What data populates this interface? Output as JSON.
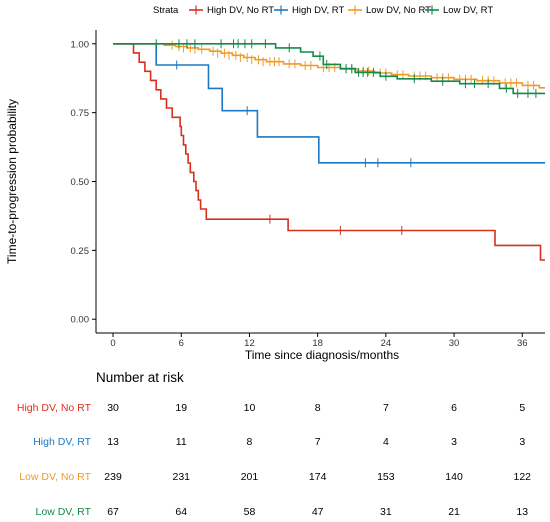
{
  "chart_data": {
    "type": "line",
    "subtype": "kaplan-meier-step",
    "legend": {
      "title": "Strata",
      "placement": "top",
      "entries": [
        "High DV, No RT",
        "High DV, RT",
        "Low DV, No RT",
        "Low DV, RT"
      ]
    },
    "xlabel": "Time since diagnosis/months",
    "ylabel": "Time-to-progression probability",
    "xlim": [
      -1.5,
      38
    ],
    "ylim": [
      -0.05,
      1.05
    ],
    "x_ticks": [
      0,
      6,
      12,
      18,
      24,
      30,
      36
    ],
    "x_tick_labels": [
      "0",
      "6",
      "12",
      "18",
      "24",
      "30",
      "36"
    ],
    "y_ticks": [
      0,
      0.25,
      0.5,
      0.75,
      1
    ],
    "y_tick_labels": [
      "0.00",
      "0.25",
      "0.50",
      "0.75",
      "1.00"
    ],
    "grid": false,
    "series": [
      {
        "name": "High DV, No RT",
        "color": "#d7301f",
        "steps": [
          [
            0,
            1.0
          ],
          [
            1.8,
            0.967
          ],
          [
            2.3,
            0.933
          ],
          [
            2.8,
            0.9
          ],
          [
            3.3,
            0.867
          ],
          [
            3.8,
            0.833
          ],
          [
            4.2,
            0.8
          ],
          [
            4.7,
            0.767
          ],
          [
            5.2,
            0.733
          ],
          [
            5.9,
            0.7
          ],
          [
            6.0,
            0.667
          ],
          [
            6.2,
            0.633
          ],
          [
            6.4,
            0.6
          ],
          [
            6.6,
            0.567
          ],
          [
            6.8,
            0.533
          ],
          [
            7.1,
            0.5
          ],
          [
            7.3,
            0.467
          ],
          [
            7.5,
            0.433
          ],
          [
            7.7,
            0.4
          ],
          [
            8.2,
            0.363
          ],
          [
            15.4,
            0.322
          ],
          [
            33.6,
            0.268
          ],
          [
            37.6,
            0.215
          ],
          [
            38,
            0.215
          ]
        ],
        "censor": [
          [
            13.8,
            0.363
          ],
          [
            20.0,
            0.322
          ],
          [
            25.4,
            0.322
          ]
        ]
      },
      {
        "name": "High DV, RT",
        "color": "#1f78c1",
        "steps": [
          [
            0,
            1.0
          ],
          [
            3.8,
            0.923
          ],
          [
            8.4,
            0.838
          ],
          [
            9.6,
            0.757
          ],
          [
            12.7,
            0.662
          ],
          [
            18.1,
            0.568
          ],
          [
            38,
            0.568
          ]
        ],
        "censor": [
          [
            5.6,
            0.923
          ],
          [
            11.8,
            0.757
          ],
          [
            22.2,
            0.568
          ],
          [
            23.3,
            0.568
          ],
          [
            26.2,
            0.568
          ]
        ]
      },
      {
        "name": "Low DV, No RT",
        "color": "#f39a26",
        "steps": [
          [
            0,
            1.0
          ],
          [
            4.5,
            0.995
          ],
          [
            5.5,
            0.99
          ],
          [
            6.5,
            0.985
          ],
          [
            7.5,
            0.98
          ],
          [
            8.5,
            0.973
          ],
          [
            9.5,
            0.966
          ],
          [
            10.5,
            0.958
          ],
          [
            11.5,
            0.95
          ],
          [
            12.5,
            0.942
          ],
          [
            13.5,
            0.935
          ],
          [
            15.0,
            0.927
          ],
          [
            16.5,
            0.921
          ],
          [
            18.0,
            0.914
          ],
          [
            20.0,
            0.908
          ],
          [
            21.5,
            0.901
          ],
          [
            23.0,
            0.894
          ],
          [
            24.5,
            0.888
          ],
          [
            26.0,
            0.883
          ],
          [
            28.0,
            0.877
          ],
          [
            30.0,
            0.871
          ],
          [
            32.0,
            0.866
          ],
          [
            34.0,
            0.858
          ],
          [
            36.0,
            0.849
          ],
          [
            37.5,
            0.84
          ],
          [
            38,
            0.84
          ]
        ],
        "censor": [
          [
            5.2,
            0.995
          ],
          [
            5.8,
            0.99
          ],
          [
            6.2,
            0.985
          ],
          [
            6.8,
            0.985
          ],
          [
            7.2,
            0.98
          ],
          [
            7.8,
            0.98
          ],
          [
            8.8,
            0.973
          ],
          [
            9.2,
            0.966
          ],
          [
            9.8,
            0.966
          ],
          [
            10.2,
            0.958
          ],
          [
            10.8,
            0.958
          ],
          [
            11.2,
            0.95
          ],
          [
            11.8,
            0.95
          ],
          [
            12.2,
            0.942
          ],
          [
            12.8,
            0.942
          ],
          [
            13.2,
            0.935
          ],
          [
            13.8,
            0.935
          ],
          [
            14.2,
            0.935
          ],
          [
            14.6,
            0.935
          ],
          [
            15.5,
            0.927
          ],
          [
            16.0,
            0.927
          ],
          [
            16.9,
            0.921
          ],
          [
            17.4,
            0.921
          ],
          [
            18.5,
            0.914
          ],
          [
            19.0,
            0.914
          ],
          [
            19.5,
            0.914
          ],
          [
            20.5,
            0.908
          ],
          [
            21.0,
            0.908
          ],
          [
            22.0,
            0.901
          ],
          [
            22.5,
            0.901
          ],
          [
            23.5,
            0.894
          ],
          [
            24.0,
            0.894
          ],
          [
            25.0,
            0.888
          ],
          [
            25.5,
            0.888
          ],
          [
            26.5,
            0.883
          ],
          [
            27.0,
            0.883
          ],
          [
            27.5,
            0.883
          ],
          [
            28.5,
            0.877
          ],
          [
            29.0,
            0.877
          ],
          [
            29.5,
            0.877
          ],
          [
            30.5,
            0.871
          ],
          [
            31.0,
            0.871
          ],
          [
            31.5,
            0.871
          ],
          [
            32.5,
            0.866
          ],
          [
            33.0,
            0.866
          ],
          [
            33.5,
            0.866
          ],
          [
            34.5,
            0.858
          ],
          [
            35.0,
            0.858
          ],
          [
            35.5,
            0.858
          ],
          [
            36.5,
            0.849
          ],
          [
            37.0,
            0.849
          ]
        ]
      },
      {
        "name": "Low DV, RT",
        "color": "#138a4a",
        "steps": [
          [
            0,
            1.0
          ],
          [
            14.3,
            0.985
          ],
          [
            16.5,
            0.97
          ],
          [
            17.6,
            0.955
          ],
          [
            18.5,
            0.925
          ],
          [
            20.0,
            0.91
          ],
          [
            21.3,
            0.896
          ],
          [
            23.5,
            0.882
          ],
          [
            25.0,
            0.873
          ],
          [
            28.0,
            0.864
          ],
          [
            30.5,
            0.855
          ],
          [
            34.0,
            0.838
          ],
          [
            35.2,
            0.82
          ],
          [
            38,
            0.82
          ]
        ],
        "censor": [
          [
            3.8,
            1.0
          ],
          [
            5.8,
            1.0
          ],
          [
            6.5,
            1.0
          ],
          [
            7.2,
            1.0
          ],
          [
            9.5,
            1.0
          ],
          [
            10.6,
            1.0
          ],
          [
            11.0,
            1.0
          ],
          [
            11.6,
            1.0
          ],
          [
            12.2,
            1.0
          ],
          [
            13.4,
            1.0
          ],
          [
            15.5,
            0.985
          ],
          [
            18.2,
            0.955
          ],
          [
            18.8,
            0.925
          ],
          [
            20.5,
            0.91
          ],
          [
            21.0,
            0.91
          ],
          [
            21.6,
            0.896
          ],
          [
            22.0,
            0.896
          ],
          [
            22.4,
            0.896
          ],
          [
            22.9,
            0.896
          ],
          [
            24.0,
            0.882
          ],
          [
            26.5,
            0.873
          ],
          [
            29.0,
            0.864
          ],
          [
            31.0,
            0.855
          ],
          [
            31.8,
            0.855
          ],
          [
            33.0,
            0.855
          ],
          [
            34.6,
            0.838
          ],
          [
            35.6,
            0.82
          ],
          [
            36.5,
            0.82
          ],
          [
            37.2,
            0.82
          ]
        ]
      }
    ],
    "risk_table": {
      "title": "Number at risk",
      "times": [
        0,
        6,
        12,
        18,
        24,
        30,
        36
      ],
      "rows": [
        {
          "label": "High DV, No RT",
          "color": "#d7301f",
          "values": [
            "30",
            "19",
            "10",
            "8",
            "7",
            "6",
            "5"
          ]
        },
        {
          "label": "High DV, RT",
          "color": "#1f78c1",
          "values": [
            "13",
            "11",
            "8",
            "7",
            "4",
            "3",
            "3"
          ]
        },
        {
          "label": "Low DV, No RT",
          "color": "#f39a26",
          "values": [
            "239",
            "231",
            "201",
            "174",
            "153",
            "140",
            "122"
          ]
        },
        {
          "label": "Low DV, RT",
          "color": "#138a4a",
          "values": [
            "67",
            "64",
            "58",
            "47",
            "31",
            "21",
            "13"
          ]
        }
      ]
    }
  }
}
